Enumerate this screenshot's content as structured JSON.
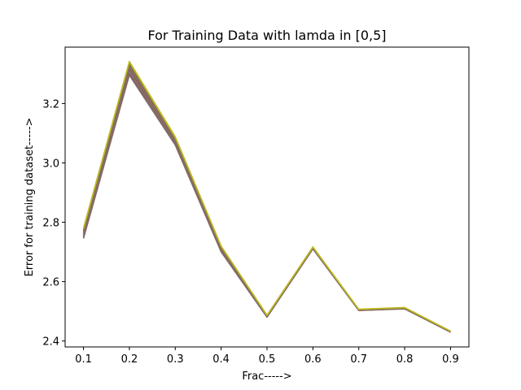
{
  "chart_data": {
    "type": "line",
    "title": "For Training Data with lamda in [0,5]",
    "xlabel": "Frac----->",
    "ylabel": "Error for training dataset----->",
    "x": [
      0.1,
      0.2,
      0.3,
      0.4,
      0.5,
      0.6,
      0.7,
      0.8,
      0.9
    ],
    "xticks": [
      "0.1",
      "0.2",
      "0.3",
      "0.4",
      "0.5",
      "0.6",
      "0.7",
      "0.8",
      "0.9"
    ],
    "yticks": [
      "2.4",
      "2.6",
      "2.8",
      "3.0",
      "3.2"
    ],
    "xlim": [
      0.06,
      0.94
    ],
    "ylim": [
      2.38,
      3.39
    ],
    "grid": false,
    "legend": "none",
    "series": [
      {
        "values": [
          2.745,
          3.295,
          3.06,
          2.7,
          2.48,
          2.71,
          2.503,
          2.508,
          2.43
        ],
        "color": "#7f7f7f"
      },
      {
        "values": [
          2.75,
          3.302,
          3.064,
          2.703,
          2.481,
          2.711,
          2.503,
          2.509,
          2.43
        ],
        "color": "#8c564b"
      },
      {
        "values": [
          2.755,
          3.309,
          3.068,
          2.706,
          2.482,
          2.712,
          2.504,
          2.509,
          2.431
        ],
        "color": "#7f7f7f"
      },
      {
        "values": [
          2.76,
          3.316,
          3.072,
          2.709,
          2.483,
          2.713,
          2.504,
          2.51,
          2.431
        ],
        "color": "#8c564b"
      },
      {
        "values": [
          2.765,
          3.323,
          3.076,
          2.712,
          2.484,
          2.714,
          2.505,
          2.511,
          2.432
        ],
        "color": "#7f7f7f"
      },
      {
        "values": [
          2.77,
          3.33,
          3.08,
          2.715,
          2.485,
          2.715,
          2.505,
          2.511,
          2.432
        ],
        "color": "#8c564b"
      },
      {
        "values": [
          2.775,
          3.337,
          3.084,
          2.718,
          2.486,
          2.716,
          2.506,
          2.512,
          2.433
        ],
        "color": "#9a9a3a"
      },
      {
        "values": [
          2.78,
          3.342,
          3.088,
          2.72,
          2.487,
          2.717,
          2.507,
          2.513,
          2.433
        ],
        "color": "#bcbd22"
      }
    ]
  }
}
